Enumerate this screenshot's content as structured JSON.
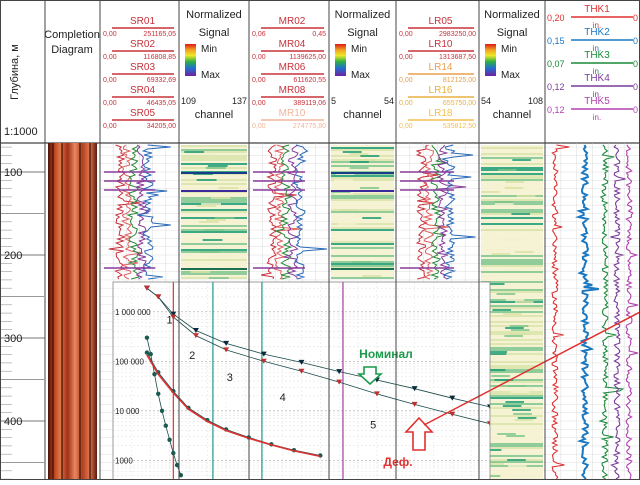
{
  "depth_track": {
    "axis_label": "Глубина, м",
    "scale": "1:1000",
    "ticks": [
      100,
      200,
      300,
      400
    ]
  },
  "completion": {
    "title_line1": "Completion",
    "title_line2": "Diagram"
  },
  "curve_groups": [
    {
      "id": "sr",
      "color": "#c8323c",
      "curves": [
        {
          "name": "SR01",
          "min": "0,00",
          "max": "251165,05",
          "color": "#c8323c"
        },
        {
          "name": "SR02",
          "min": "0,00",
          "max": "116808,85",
          "color": "#c8323c"
        },
        {
          "name": "SR03",
          "min": "0,00",
          "max": "69332,69",
          "color": "#c8323c"
        },
        {
          "name": "SR04",
          "min": "0,00",
          "max": "46435,05",
          "color": "#c8323c"
        },
        {
          "name": "SR05",
          "min": "0,00",
          "max": "34205,00",
          "color": "#c8323c"
        }
      ]
    },
    {
      "id": "mr",
      "color": "#c8323c",
      "curves": [
        {
          "name": "MR02",
          "min": "0,06",
          "max": "0,45",
          "color": "#c8323c"
        },
        {
          "name": "MR04",
          "min": "0,00",
          "max": "1139625,00",
          "color": "#c8323c"
        },
        {
          "name": "MR06",
          "min": "0,00",
          "max": "611620,55",
          "color": "#c8323c"
        },
        {
          "name": "MR08",
          "min": "0,00",
          "max": "389119,06",
          "color": "#c8323c"
        },
        {
          "name": "MR10",
          "min": "0,00",
          "max": "274775,80",
          "color": "#f0b49c"
        }
      ]
    },
    {
      "id": "lr",
      "color": "#c8323c",
      "curves": [
        {
          "name": "LR05",
          "min": "0,00",
          "max": "2983250,00",
          "color": "#c8323c"
        },
        {
          "name": "LR10",
          "min": "0,00",
          "max": "1313687,50",
          "color": "#c8323c"
        },
        {
          "name": "LR14",
          "min": "0,00",
          "max": "812125,00",
          "color": "#e8a04c"
        },
        {
          "name": "LR16",
          "min": "0,00",
          "max": "655750,00",
          "color": "#e8b040"
        },
        {
          "name": "LR18",
          "min": "0,00",
          "max": "535812,50",
          "color": "#f0c050"
        }
      ]
    }
  ],
  "signal_tracks": [
    {
      "title_line1": "Normalized",
      "title_line2": "Signal",
      "min_label": "Min",
      "max_label": "Max",
      "range_min": "109",
      "range_max": "137",
      "channel_label": "channel"
    },
    {
      "title_line1": "Normalized",
      "title_line2": "Signal",
      "min_label": "Min",
      "max_label": "Max",
      "range_min": "5",
      "range_max": "54",
      "channel_label": "channel"
    },
    {
      "title_line1": "Normalized",
      "title_line2": "Signal",
      "min_label": "Min",
      "max_label": "Max",
      "range_min": "54",
      "range_max": "108",
      "channel_label": "channel"
    }
  ],
  "thk_track": {
    "curves": [
      {
        "name": "THK1",
        "left": "0,20",
        "unit": "in.",
        "right": "0",
        "color": "#e03030"
      },
      {
        "name": "THK2",
        "left": "0,15",
        "unit": "in.",
        "right": "0",
        "color": "#1a78c2"
      },
      {
        "name": "THK3",
        "left": "0,07",
        "unit": "in.",
        "right": "0",
        "color": "#1a8a3a"
      },
      {
        "name": "THK4",
        "left": "0,12",
        "unit": "in.",
        "right": "0",
        "color": "#7a3a9a"
      },
      {
        "name": "THK5",
        "left": "0,12",
        "unit": "in.",
        "right": "0",
        "color": "#b040b0"
      }
    ]
  },
  "colors": {
    "grid": "#bfbfbf",
    "panel_border": "#444444",
    "header_sep": "#888888",
    "green_label": "#1a9a4a",
    "red_label": "#e03030",
    "teal_line": "#1a9a8a"
  },
  "chart_data": {
    "type": "line",
    "yscale": "log",
    "ytick_labels": [
      "1 000 000",
      "100 000",
      "10 000",
      "1000"
    ],
    "ytick_values": [
      1000000,
      100000,
      10000,
      1000
    ],
    "ylim": [
      400,
      4000000
    ],
    "xlim": [
      0,
      1
    ],
    "series": [
      {
        "name": "Номинал",
        "style": "triangles",
        "x": [
          0.09,
          0.12,
          0.16,
          0.22,
          0.3,
          0.4,
          0.5,
          0.6,
          0.7,
          0.8,
          0.9,
          1.0
        ],
        "values": [
          3000000,
          2000000,
          900000,
          420000,
          230000,
          140000,
          95000,
          62000,
          42000,
          28000,
          18000,
          12000
        ]
      },
      {
        "name": "Деф.",
        "style": "triangles-red",
        "x": [
          0.09,
          0.12,
          0.16,
          0.22,
          0.3,
          0.4,
          0.5,
          0.6,
          0.7,
          0.8,
          0.9,
          1.0
        ],
        "values": [
          3000000,
          2000000,
          780000,
          330000,
          170000,
          100000,
          63000,
          38000,
          22000,
          13500,
          8500,
          5500
        ]
      },
      {
        "name": "",
        "style": "dots",
        "x": [
          0.09,
          0.1,
          0.11,
          0.12,
          0.13,
          0.14,
          0.15,
          0.16,
          0.17,
          0.18
        ],
        "values": [
          300000,
          140000,
          55000,
          22000,
          10000,
          5000,
          2600,
          1400,
          800,
          500
        ]
      },
      {
        "name": "",
        "style": "dots",
        "x": [
          0.09,
          0.12,
          0.16,
          0.2,
          0.25,
          0.3,
          0.36,
          0.42,
          0.48,
          0.55
        ],
        "values": [
          150000,
          60000,
          25000,
          11500,
          6500,
          4200,
          2900,
          2100,
          1600,
          1250
        ]
      },
      {
        "name": "",
        "style": "line-red",
        "x": [
          0.09,
          0.12,
          0.16,
          0.2,
          0.25,
          0.3,
          0.36,
          0.42,
          0.48,
          0.55
        ],
        "values": [
          135000,
          55000,
          23000,
          10800,
          6100,
          4000,
          2800,
          2050,
          1550,
          1200
        ]
      }
    ],
    "vlines": [
      {
        "x": 0.16,
        "color": "#e03030"
      },
      {
        "x": 0.265,
        "color": "#1a9a8a"
      },
      {
        "x": 0.395,
        "color": "#1a9a8a"
      },
      {
        "x": 0.61,
        "color": "#a040a0"
      }
    ],
    "region_labels": [
      "1",
      "2",
      "3",
      "4",
      "5"
    ],
    "annotations": [
      {
        "text": "Номинал",
        "color": "#1a9a4a"
      },
      {
        "text": "Деф.",
        "color": "#e03030"
      }
    ]
  }
}
